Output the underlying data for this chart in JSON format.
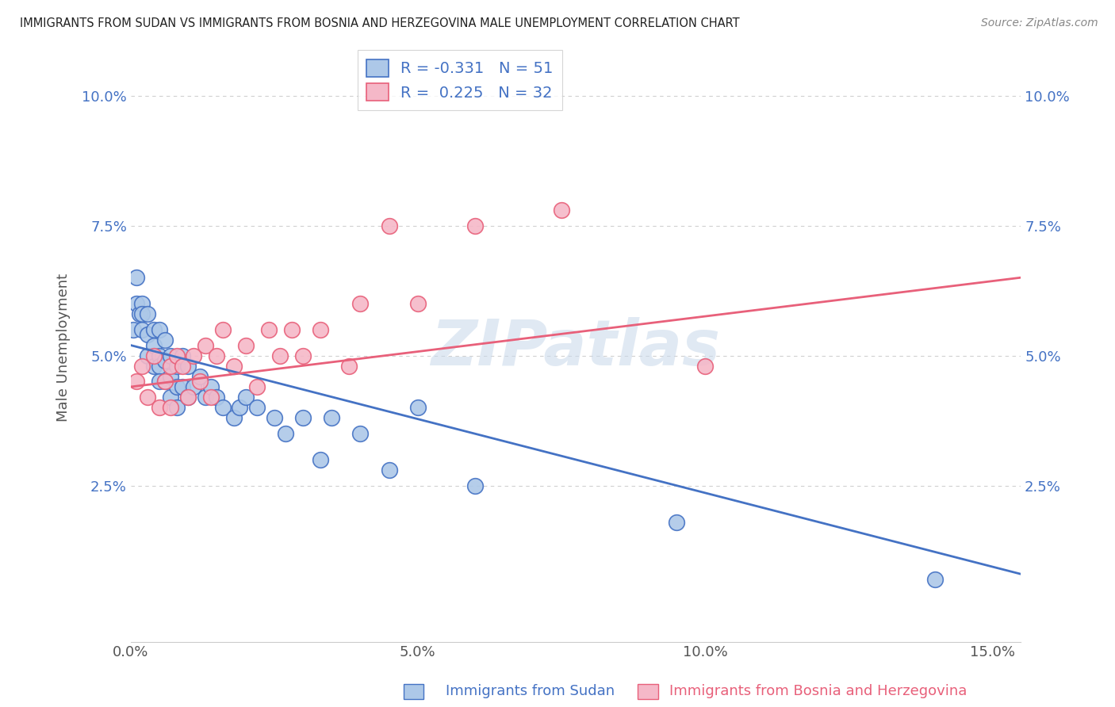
{
  "title": "IMMIGRANTS FROM SUDAN VS IMMIGRANTS FROM BOSNIA AND HERZEGOVINA MALE UNEMPLOYMENT CORRELATION CHART",
  "source": "Source: ZipAtlas.com",
  "xlabel_bottom": [
    "Immigrants from Sudan",
    "Immigrants from Bosnia and Herzegovina"
  ],
  "ylabel": "Male Unemployment",
  "R_sudan": -0.331,
  "N_sudan": 51,
  "R_bosnia": 0.225,
  "N_bosnia": 32,
  "sudan_color": "#adc8e8",
  "bosnia_color": "#f5b8c8",
  "sudan_line_color": "#4472c4",
  "bosnia_line_color": "#e8607a",
  "xlim": [
    0.0,
    0.155
  ],
  "ylim": [
    -0.005,
    0.108
  ],
  "yticks": [
    0.025,
    0.05,
    0.075,
    0.1
  ],
  "ytick_labels": [
    "2.5%",
    "5.0%",
    "7.5%",
    "10.0%"
  ],
  "xticks": [
    0.0,
    0.05,
    0.1,
    0.15
  ],
  "xtick_labels": [
    "0.0%",
    "5.0%",
    "10.0%",
    "15.0%"
  ],
  "sudan_x": [
    0.0005,
    0.001,
    0.001,
    0.0015,
    0.002,
    0.002,
    0.002,
    0.003,
    0.003,
    0.003,
    0.004,
    0.004,
    0.004,
    0.005,
    0.005,
    0.005,
    0.005,
    0.006,
    0.006,
    0.006,
    0.007,
    0.007,
    0.007,
    0.008,
    0.008,
    0.008,
    0.009,
    0.009,
    0.01,
    0.01,
    0.011,
    0.012,
    0.013,
    0.014,
    0.015,
    0.016,
    0.018,
    0.019,
    0.02,
    0.022,
    0.025,
    0.027,
    0.03,
    0.033,
    0.035,
    0.04,
    0.045,
    0.05,
    0.06,
    0.095,
    0.14
  ],
  "sudan_y": [
    0.055,
    0.065,
    0.06,
    0.058,
    0.06,
    0.058,
    0.055,
    0.058,
    0.054,
    0.05,
    0.055,
    0.052,
    0.048,
    0.055,
    0.05,
    0.048,
    0.045,
    0.053,
    0.049,
    0.045,
    0.05,
    0.046,
    0.042,
    0.048,
    0.044,
    0.04,
    0.05,
    0.044,
    0.048,
    0.042,
    0.044,
    0.046,
    0.042,
    0.044,
    0.042,
    0.04,
    0.038,
    0.04,
    0.042,
    0.04,
    0.038,
    0.035,
    0.038,
    0.03,
    0.038,
    0.035,
    0.028,
    0.04,
    0.025,
    0.018,
    0.007
  ],
  "bosnia_x": [
    0.001,
    0.002,
    0.003,
    0.004,
    0.005,
    0.006,
    0.007,
    0.007,
    0.008,
    0.009,
    0.01,
    0.011,
    0.012,
    0.013,
    0.014,
    0.015,
    0.016,
    0.018,
    0.02,
    0.022,
    0.024,
    0.026,
    0.028,
    0.03,
    0.033,
    0.038,
    0.04,
    0.045,
    0.05,
    0.06,
    0.075,
    0.1
  ],
  "bosnia_y": [
    0.045,
    0.048,
    0.042,
    0.05,
    0.04,
    0.045,
    0.048,
    0.04,
    0.05,
    0.048,
    0.042,
    0.05,
    0.045,
    0.052,
    0.042,
    0.05,
    0.055,
    0.048,
    0.052,
    0.044,
    0.055,
    0.05,
    0.055,
    0.05,
    0.055,
    0.048,
    0.06,
    0.075,
    0.06,
    0.075,
    0.078,
    0.048
  ],
  "sudan_line_start_y": 0.052,
  "sudan_line_end_y": 0.008,
  "bosnia_line_start_y": 0.044,
  "bosnia_line_end_y": 0.065,
  "watermark": "ZIPatlas",
  "background_color": "#ffffff",
  "grid_color": "#d0d0d0"
}
